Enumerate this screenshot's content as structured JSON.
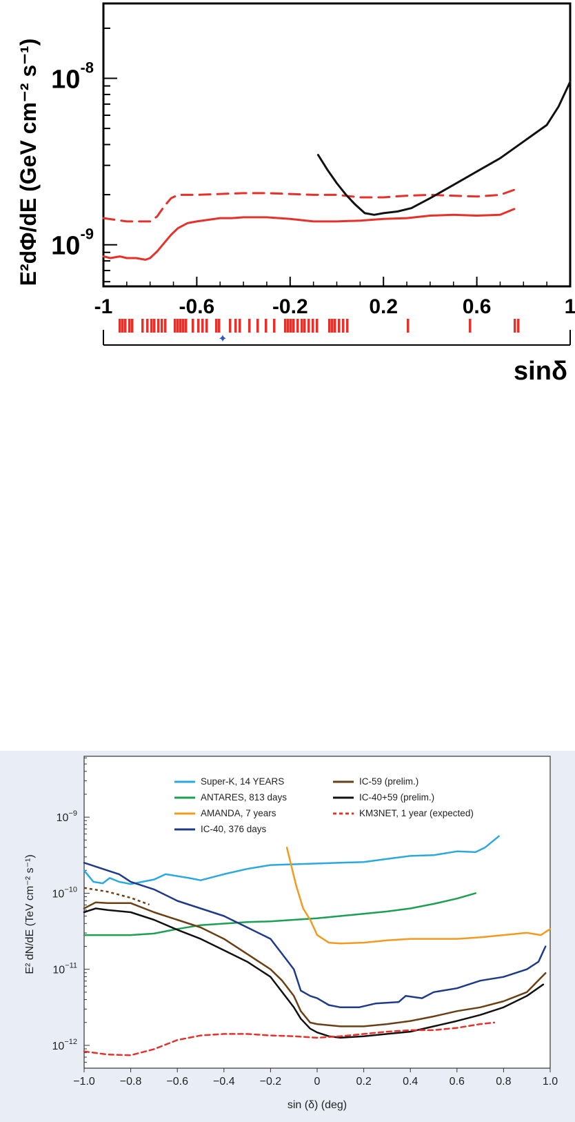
{
  "chart_data": [
    {
      "type": "line",
      "title": "",
      "xlabel": "sinδ",
      "ylabel": "E²dΦ/dE (GeV cm⁻² s⁻¹)",
      "xlim": [
        -1,
        1
      ],
      "ylim_log10": [
        -9.25,
        -7.55
      ],
      "y_scale": "log",
      "x_ticks": [
        "-1",
        "-0.6",
        "-0.2",
        "0.2",
        "0.6",
        "1"
      ],
      "y_decade_labels": [
        {
          "base": "10",
          "exp": "-8",
          "value": -8
        },
        {
          "base": "10",
          "exp": "-9",
          "value": -9
        }
      ],
      "grid": false,
      "series": [
        {
          "style": "solid",
          "color": "#e8302a",
          "x": [
            -1.0,
            -0.97,
            -0.93,
            -0.9,
            -0.86,
            -0.82,
            -0.8,
            -0.77,
            -0.74,
            -0.71,
            -0.68,
            -0.64,
            -0.6,
            -0.55,
            -0.5,
            -0.45,
            -0.4,
            -0.3,
            -0.2,
            -0.1,
            0.0,
            0.1,
            0.2,
            0.3,
            0.4,
            0.5,
            0.6,
            0.7,
            0.76
          ],
          "y": [
            -9.07,
            -9.08,
            -9.07,
            -9.08,
            -9.08,
            -9.09,
            -9.08,
            -9.04,
            -8.99,
            -8.94,
            -8.9,
            -8.87,
            -8.86,
            -8.85,
            -8.84,
            -8.84,
            -8.835,
            -8.835,
            -8.845,
            -8.86,
            -8.86,
            -8.855,
            -8.845,
            -8.84,
            -8.825,
            -8.82,
            -8.825,
            -8.82,
            -8.785
          ]
        },
        {
          "style": "dashed",
          "color": "#e8302a",
          "x": [
            -1.0,
            -0.95,
            -0.9,
            -0.85,
            -0.8,
            -0.77,
            -0.74,
            -0.71,
            -0.68,
            -0.64,
            -0.6,
            -0.5,
            -0.4,
            -0.3,
            -0.2,
            -0.1,
            0.0,
            0.1,
            0.2,
            0.3,
            0.4,
            0.5,
            0.6,
            0.7,
            0.76
          ],
          "y": [
            -8.84,
            -8.85,
            -8.86,
            -8.86,
            -8.86,
            -8.83,
            -8.77,
            -8.72,
            -8.7,
            -8.7,
            -8.7,
            -8.695,
            -8.69,
            -8.69,
            -8.695,
            -8.7,
            -8.7,
            -8.715,
            -8.715,
            -8.705,
            -8.7,
            -8.705,
            -8.71,
            -8.7,
            -8.67
          ]
        },
        {
          "style": "solid",
          "color": "#111111",
          "x": [
            -0.08,
            -0.04,
            0.0,
            0.04,
            0.08,
            0.12,
            0.16,
            0.2,
            0.26,
            0.32,
            0.4,
            0.5,
            0.6,
            0.7,
            0.8,
            0.9,
            0.95,
            1.0
          ],
          "y": [
            -8.46,
            -8.55,
            -8.63,
            -8.7,
            -8.76,
            -8.81,
            -8.82,
            -8.81,
            -8.8,
            -8.78,
            -8.72,
            -8.64,
            -8.56,
            -8.48,
            -8.38,
            -8.28,
            -8.17,
            -8.02
          ]
        }
      ]
    },
    {
      "type": "line",
      "title": "",
      "xlabel": "sin (δ) (deg)",
      "ylabel": "E² dN/dE (TeV cm⁻² s⁻¹)",
      "xlim": [
        -1.0,
        1.0
      ],
      "ylim_log10": [
        -12.3,
        -8.2
      ],
      "y_scale": "log",
      "x_ticks": [
        "−1.0",
        "−0.8",
        "−0.6",
        "−0.4",
        "−0.2",
        "0",
        "0.2",
        "0.4",
        "0.6",
        "0.8",
        "1.0"
      ],
      "y_decade_labels": [
        {
          "base": "10",
          "exp": "−9",
          "value": -9
        },
        {
          "base": "10",
          "exp": "−10",
          "value": -10
        },
        {
          "base": "10",
          "exp": "−11",
          "value": -11
        },
        {
          "base": "10",
          "exp": "−12",
          "value": -12
        }
      ],
      "grid": false,
      "legend_position": "top",
      "series": [
        {
          "name": "Super-K, 14 YEARS",
          "color": "#2aa8e0",
          "style": "solid",
          "x": [
            -1.0,
            -0.96,
            -0.92,
            -0.89,
            -0.85,
            -0.8,
            -0.75,
            -0.7,
            -0.65,
            -0.55,
            -0.5,
            -0.4,
            -0.3,
            -0.2,
            -0.1,
            0.0,
            0.1,
            0.2,
            0.3,
            0.4,
            0.5,
            0.6,
            0.68,
            0.72,
            0.78
          ],
          "y": [
            -9.7,
            -9.85,
            -9.87,
            -9.8,
            -9.85,
            -9.88,
            -9.85,
            -9.82,
            -9.75,
            -9.8,
            -9.83,
            -9.75,
            -9.68,
            -9.63,
            -9.62,
            -9.61,
            -9.6,
            -9.59,
            -9.55,
            -9.51,
            -9.5,
            -9.45,
            -9.46,
            -9.4,
            -9.25
          ]
        },
        {
          "name": "ANTARES, 813 days",
          "color": "#1aa050",
          "style": "solid",
          "x": [
            -1.0,
            -0.9,
            -0.8,
            -0.7,
            -0.6,
            -0.5,
            -0.4,
            -0.3,
            -0.2,
            -0.1,
            0.0,
            0.1,
            0.2,
            0.3,
            0.4,
            0.5,
            0.6,
            0.68
          ],
          "y": [
            -10.55,
            -10.55,
            -10.55,
            -10.53,
            -10.47,
            -10.42,
            -10.4,
            -10.38,
            -10.37,
            -10.35,
            -10.33,
            -10.3,
            -10.27,
            -10.24,
            -10.2,
            -10.14,
            -10.07,
            -10.0
          ]
        },
        {
          "name": "AMANDA, 7 years",
          "color": "#f39a1e",
          "style": "solid",
          "x": [
            -0.13,
            -0.11,
            -0.09,
            -0.06,
            -0.03,
            -0.01,
            0.0,
            0.05,
            0.1,
            0.2,
            0.3,
            0.4,
            0.5,
            0.6,
            0.7,
            0.8,
            0.9,
            0.96,
            1.0
          ],
          "y": [
            -9.4,
            -9.65,
            -9.9,
            -10.2,
            -10.35,
            -10.48,
            -10.55,
            -10.65,
            -10.66,
            -10.65,
            -10.62,
            -10.6,
            -10.6,
            -10.6,
            -10.58,
            -10.55,
            -10.52,
            -10.55,
            -10.47
          ]
        },
        {
          "name": "IC-40, 376 days",
          "color": "#1e3a8a",
          "style": "solid",
          "x": [
            -1.0,
            -0.9,
            -0.85,
            -0.8,
            -0.7,
            -0.6,
            -0.5,
            -0.4,
            -0.3,
            -0.2,
            -0.15,
            -0.1,
            -0.07,
            -0.03,
            0.0,
            0.05,
            0.1,
            0.18,
            0.25,
            0.35,
            0.38,
            0.45,
            0.5,
            0.6,
            0.7,
            0.8,
            0.85,
            0.9,
            0.95,
            0.98
          ],
          "y": [
            -9.6,
            -9.7,
            -9.75,
            -9.85,
            -9.95,
            -10.1,
            -10.2,
            -10.3,
            -10.45,
            -10.6,
            -10.8,
            -11.0,
            -11.28,
            -11.35,
            -11.38,
            -11.47,
            -11.5,
            -11.5,
            -11.45,
            -11.43,
            -11.35,
            -11.38,
            -11.3,
            -11.25,
            -11.15,
            -11.1,
            -11.05,
            -11.0,
            -10.9,
            -10.7
          ]
        },
        {
          "name": "IC-59 (prelim.)",
          "color": "#6b3f14",
          "style": "solid",
          "x": [
            -1.0,
            -0.95,
            -0.9,
            -0.8,
            -0.7,
            -0.6,
            -0.5,
            -0.4,
            -0.3,
            -0.2,
            -0.15,
            -0.1,
            -0.07,
            -0.03,
            0.0,
            0.1,
            0.2,
            0.3,
            0.4,
            0.5,
            0.6,
            0.7,
            0.8,
            0.9,
            0.98
          ],
          "y": [
            -10.2,
            -10.12,
            -10.13,
            -10.13,
            -10.25,
            -10.35,
            -10.45,
            -10.6,
            -10.8,
            -11.0,
            -11.15,
            -11.35,
            -11.55,
            -11.7,
            -11.72,
            -11.75,
            -11.75,
            -11.72,
            -11.68,
            -11.62,
            -11.55,
            -11.5,
            -11.42,
            -11.3,
            -11.05
          ]
        },
        {
          "name": "IC-40+59 (prelim.)",
          "color": "#111111",
          "style": "solid",
          "x": [
            -1.0,
            -0.95,
            -0.9,
            -0.8,
            -0.7,
            -0.6,
            -0.5,
            -0.4,
            -0.3,
            -0.2,
            -0.15,
            -0.1,
            -0.07,
            -0.03,
            0.0,
            0.05,
            0.1,
            0.2,
            0.3,
            0.4,
            0.5,
            0.6,
            0.7,
            0.8,
            0.9,
            0.97
          ],
          "y": [
            -10.25,
            -10.2,
            -10.22,
            -10.25,
            -10.35,
            -10.48,
            -10.6,
            -10.75,
            -10.9,
            -11.1,
            -11.3,
            -11.5,
            -11.65,
            -11.78,
            -11.83,
            -11.88,
            -11.9,
            -11.88,
            -11.85,
            -11.82,
            -11.75,
            -11.68,
            -11.6,
            -11.5,
            -11.35,
            -11.2
          ]
        },
        {
          "name": "KM3NET, 1 year (expected)",
          "color": "#e8302a",
          "style": "dashed",
          "x": [
            -1.0,
            -0.9,
            -0.8,
            -0.7,
            -0.6,
            -0.5,
            -0.4,
            -0.3,
            -0.2,
            -0.1,
            0.0,
            0.1,
            0.2,
            0.3,
            0.4,
            0.5,
            0.6,
            0.7,
            0.76
          ],
          "y": [
            -12.08,
            -12.12,
            -12.13,
            -12.05,
            -11.93,
            -11.87,
            -11.85,
            -11.85,
            -11.87,
            -11.88,
            -11.9,
            -11.88,
            -11.85,
            -11.82,
            -11.8,
            -11.8,
            -11.77,
            -11.72,
            -11.7
          ]
        }
      ],
      "extra_lines": [
        {
          "color": "#6b3f14",
          "style": "dotted",
          "x": [
            -1.0,
            -0.9,
            -0.8,
            -0.72
          ],
          "y": [
            -9.93,
            -9.98,
            -10.06,
            -10.15
          ]
        }
      ]
    }
  ]
}
